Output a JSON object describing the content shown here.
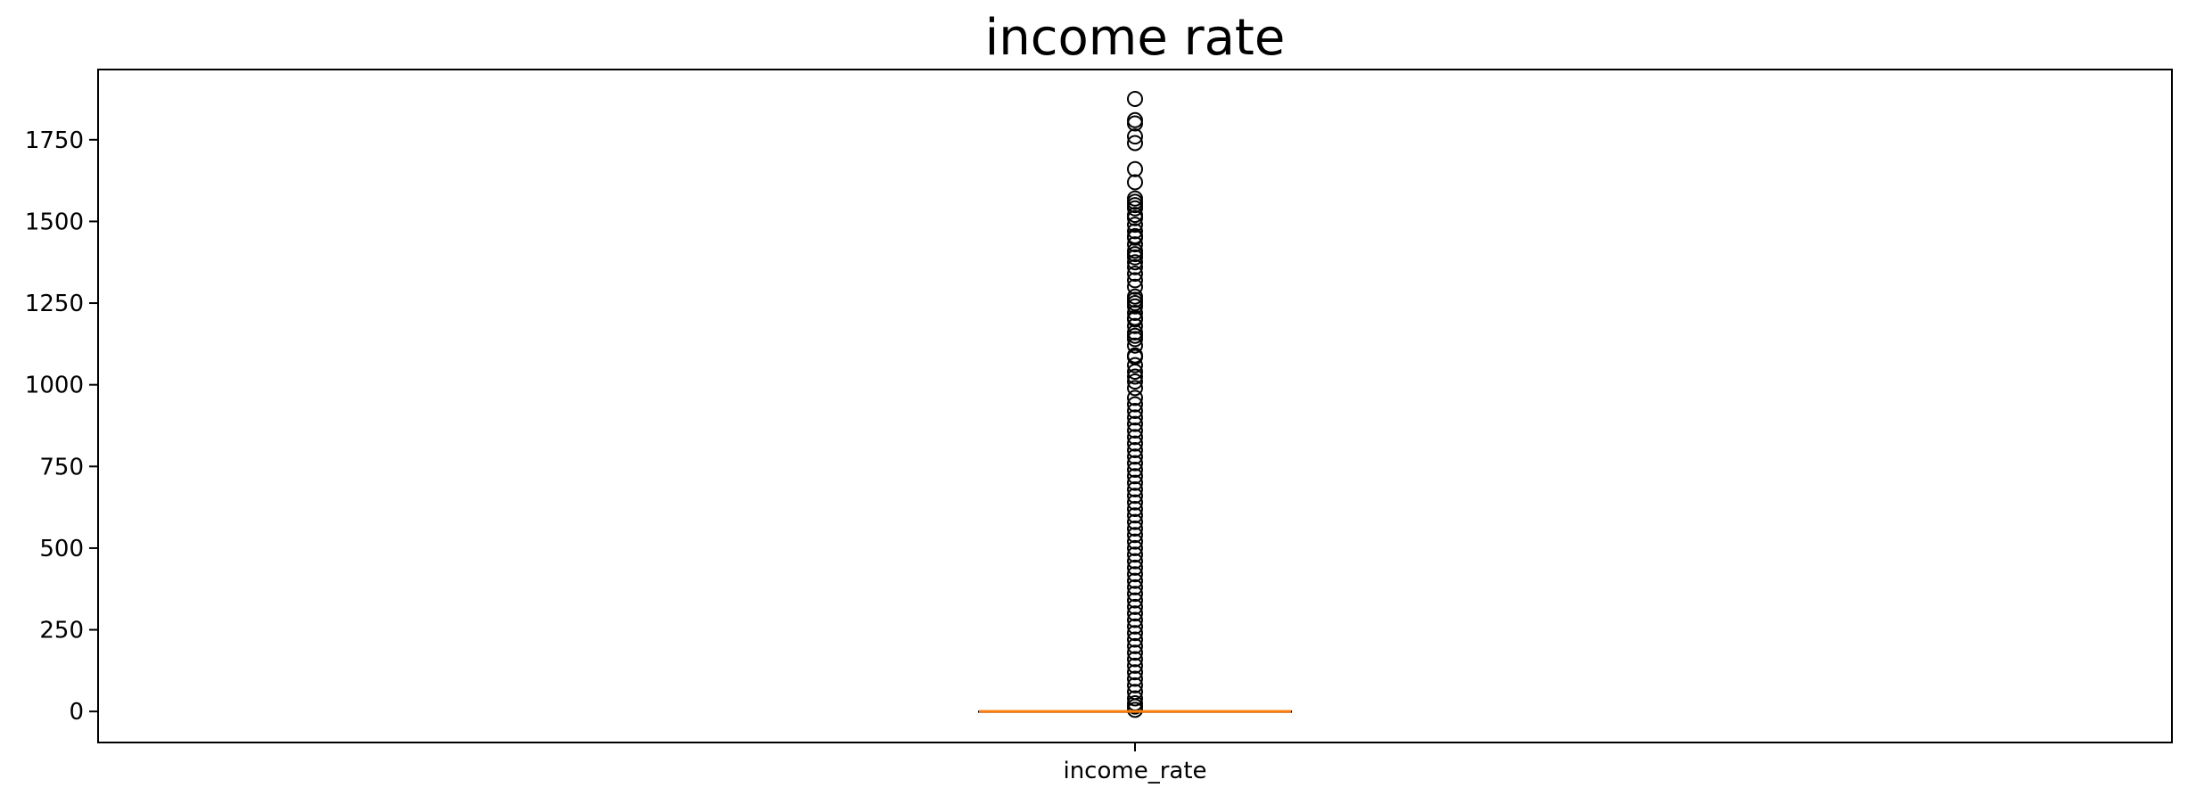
{
  "chart_data": {
    "type": "box",
    "title": "income rate",
    "xlabel": "",
    "ylabel": "",
    "categories": [
      "income_rate"
    ],
    "ylim": [
      -95,
      1965
    ],
    "yticks": [
      0,
      250,
      500,
      750,
      1000,
      1250,
      1500,
      1750
    ],
    "ytick_labels": [
      "0",
      "250",
      "500",
      "750",
      "1000",
      "1250",
      "1500",
      "1750"
    ],
    "grid": false,
    "box": {
      "q1": 0,
      "median": 0,
      "q3": 0,
      "whisker_low": 0,
      "whisker_high": 0
    },
    "outliers": [
      1875,
      1810,
      1800,
      1760,
      1740,
      1660,
      1620,
      1570,
      1560,
      1550,
      1540,
      1520,
      1510,
      1490,
      1470,
      1455,
      1450,
      1430,
      1410,
      1400,
      1390,
      1375,
      1360,
      1340,
      1320,
      1300,
      1270,
      1260,
      1250,
      1240,
      1220,
      1205,
      1200,
      1180,
      1160,
      1150,
      1140,
      1120,
      1090,
      1085,
      1060,
      1040,
      1025,
      1010,
      990,
      960,
      940,
      920,
      900,
      880,
      860,
      840,
      820,
      800,
      780,
      760,
      740,
      720,
      700,
      680,
      660,
      640,
      620,
      600,
      580,
      560,
      540,
      520,
      500,
      480,
      460,
      440,
      420,
      400,
      380,
      360,
      340,
      320,
      300,
      280,
      260,
      240,
      220,
      200,
      180,
      160,
      140,
      120,
      100,
      80,
      60,
      40,
      25,
      15,
      5
    ],
    "colors": {
      "median": "#ff7f0e",
      "outlier": "#000000",
      "axes": "#000000"
    }
  }
}
